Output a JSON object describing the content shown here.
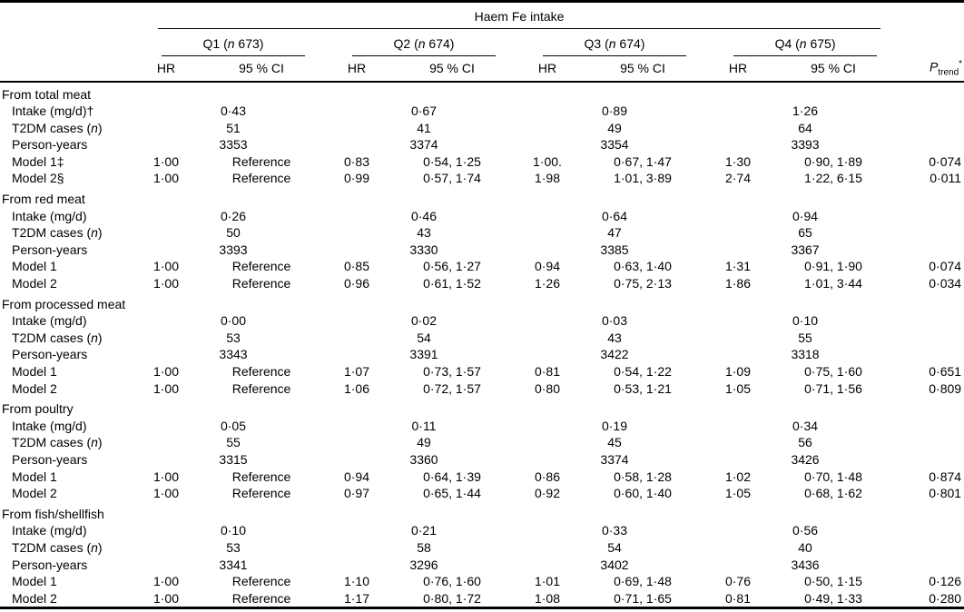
{
  "header": {
    "spanner": "Haem Fe intake",
    "hr_label": "HR",
    "ci_label": "95 % CI",
    "p": {
      "base": "P",
      "sub": "trend",
      "sup": "*"
    },
    "quartiles": [
      {
        "pre": "Q1 (",
        "it": "n",
        "post": " 673)"
      },
      {
        "pre": "Q2 (",
        "it": "n",
        "post": " 674)"
      },
      {
        "pre": "Q3 (",
        "it": "n",
        "post": " 674)"
      },
      {
        "pre": "Q4 (",
        "it": "n",
        "post": " 675)"
      }
    ]
  },
  "sections": [
    {
      "title": "From total meat",
      "rows": [
        {
          "kind": "span",
          "label": {
            "pre": "Intake (mg/d)†"
          },
          "values": [
            "0·43",
            "0·67",
            "0·89",
            "1·26"
          ]
        },
        {
          "kind": "span",
          "label": {
            "pre": "T2DM cases (",
            "it": "n",
            "post": ")"
          },
          "values": [
            "51",
            "41",
            "49",
            "64"
          ]
        },
        {
          "kind": "span",
          "label": {
            "pre": "Person-years"
          },
          "values": [
            "3353",
            "3374",
            "3354",
            "3393"
          ]
        },
        {
          "kind": "model",
          "label": {
            "pre": "Model 1‡"
          },
          "hr": [
            "1·00",
            "0·83",
            "1·00.",
            "1·30"
          ],
          "ci": [
            "Reference",
            "0·54, 1·25",
            "0·67, 1·47",
            "0·90, 1·89"
          ],
          "p": "0·074"
        },
        {
          "kind": "model",
          "label": {
            "pre": "Model 2§"
          },
          "hr": [
            "1·00",
            "0·99",
            "1·98",
            "2·74"
          ],
          "ci": [
            "Reference",
            "0·57, 1·74",
            "1·01, 3·89",
            "1·22, 6·15"
          ],
          "p": "0·011"
        }
      ]
    },
    {
      "title": "From red meat",
      "rows": [
        {
          "kind": "span",
          "label": {
            "pre": "Intake (mg/d)"
          },
          "values": [
            "0·26",
            "0·46",
            "0·64",
            "0·94"
          ]
        },
        {
          "kind": "span",
          "label": {
            "pre": "T2DM cases (",
            "it": "n",
            "post": ")"
          },
          "values": [
            "50",
            "43",
            "47",
            "65"
          ]
        },
        {
          "kind": "span",
          "label": {
            "pre": "Person-years"
          },
          "values": [
            "3393",
            "3330",
            "3385",
            "3367"
          ]
        },
        {
          "kind": "model",
          "label": {
            "pre": "Model 1"
          },
          "hr": [
            "1·00",
            "0·85",
            "0·94",
            "1·31"
          ],
          "ci": [
            "Reference",
            "0·56, 1·27",
            "0·63, 1·40",
            "0·91, 1·90"
          ],
          "p": "0·074"
        },
        {
          "kind": "model",
          "label": {
            "pre": "Model 2"
          },
          "hr": [
            "1·00",
            "0·96",
            "1·26",
            "1·86"
          ],
          "ci": [
            "Reference",
            "0·61, 1·52",
            "0·75, 2·13",
            "1·01, 3·44"
          ],
          "p": "0·034"
        }
      ]
    },
    {
      "title": "From processed meat",
      "rows": [
        {
          "kind": "span",
          "label": {
            "pre": "Intake (mg/d)"
          },
          "values": [
            "0·00",
            "0·02",
            "0·03",
            "0·10"
          ]
        },
        {
          "kind": "span",
          "label": {
            "pre": "T2DM cases (",
            "it": "n",
            "post": ")"
          },
          "values": [
            "53",
            "54",
            "43",
            "55"
          ]
        },
        {
          "kind": "span",
          "label": {
            "pre": "Person-years"
          },
          "values": [
            "3343",
            "3391",
            "3422",
            "3318"
          ]
        },
        {
          "kind": "model",
          "label": {
            "pre": "Model 1"
          },
          "hr": [
            "1·00",
            "1·07",
            "0·81",
            "1·09"
          ],
          "ci": [
            "Reference",
            "0·73, 1·57",
            "0·54, 1·22",
            "0·75, 1·60"
          ],
          "p": "0·651"
        },
        {
          "kind": "model",
          "label": {
            "pre": "Model 2"
          },
          "hr": [
            "1·00",
            "1·06",
            "0·80",
            "1·05"
          ],
          "ci": [
            "Reference",
            "0·72, 1·57",
            "0·53, 1·21",
            "0·71, 1·56"
          ],
          "p": "0·809"
        }
      ]
    },
    {
      "title": "From poultry",
      "rows": [
        {
          "kind": "span",
          "label": {
            "pre": "Intake (mg/d)"
          },
          "values": [
            "0·05",
            "0·11",
            "0·19",
            "0·34"
          ]
        },
        {
          "kind": "span",
          "label": {
            "pre": "T2DM cases (",
            "it": "n",
            "post": ")"
          },
          "values": [
            "55",
            "49",
            "45",
            "56"
          ]
        },
        {
          "kind": "span",
          "label": {
            "pre": "Person-years"
          },
          "values": [
            "3315",
            "3360",
            "3374",
            "3426"
          ]
        },
        {
          "kind": "model",
          "label": {
            "pre": "Model 1"
          },
          "hr": [
            "1·00",
            "0·94",
            "0·86",
            "1·02"
          ],
          "ci": [
            "Reference",
            "0·64, 1·39",
            "0·58, 1·28",
            "0·70, 1·48"
          ],
          "p": "0·874"
        },
        {
          "kind": "model",
          "label": {
            "pre": "Model 2"
          },
          "hr": [
            "1·00",
            "0·97",
            "0·92",
            "1·05"
          ],
          "ci": [
            "Reference",
            "0·65, 1·44",
            "0·60, 1·40",
            "0·68, 1·62"
          ],
          "p": "0·801"
        }
      ]
    },
    {
      "title": "From fish/shellfish",
      "rows": [
        {
          "kind": "span",
          "label": {
            "pre": "Intake (mg/d)"
          },
          "values": [
            "0·10",
            "0·21",
            "0·33",
            "0·56"
          ]
        },
        {
          "kind": "span",
          "label": {
            "pre": "T2DM cases (",
            "it": "n",
            "post": ")"
          },
          "values": [
            "53",
            "58",
            "54",
            "40"
          ]
        },
        {
          "kind": "span",
          "label": {
            "pre": "Person-years"
          },
          "values": [
            "3341",
            "3296",
            "3402",
            "3436"
          ]
        },
        {
          "kind": "model",
          "label": {
            "pre": "Model 1"
          },
          "hr": [
            "1·00",
            "1·10",
            "1·01",
            "0·76"
          ],
          "ci": [
            "Reference",
            "0·76, 1·60",
            "0·69, 1·48",
            "0·50, 1·15"
          ],
          "p": "0·126"
        },
        {
          "kind": "model",
          "label": {
            "pre": "Model 2"
          },
          "hr": [
            "1·00",
            "1·17",
            "1·08",
            "0·81"
          ],
          "ci": [
            "Reference",
            "0·80, 1·72",
            "0·71, 1·65",
            "0·49, 1·33"
          ],
          "p": "0·280"
        }
      ]
    }
  ]
}
